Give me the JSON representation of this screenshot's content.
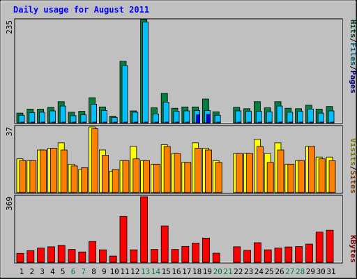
{
  "chart_data": {
    "type": "bar",
    "title": "Daily usage for August 2011",
    "categories": [
      "1",
      "2",
      "3",
      "4",
      "5",
      "6",
      "7",
      "8",
      "9",
      "10",
      "11",
      "12",
      "13",
      "14",
      "15",
      "16",
      "17",
      "18",
      "19",
      "20",
      "21",
      "22",
      "23",
      "24",
      "25",
      "26",
      "27",
      "28",
      "29",
      "30",
      "31"
    ],
    "weekend_days": [
      "6",
      "7",
      "13",
      "14",
      "20",
      "21",
      "27",
      "28"
    ],
    "panels": [
      {
        "max_label": "235",
        "ylim": [
          0,
          235
        ],
        "legend": [
          "Pages",
          "Files",
          "Hits"
        ],
        "series": [
          {
            "name": "Hits",
            "color": "#008040",
            "values": [
              22,
              31,
              31,
              35,
              48,
              24,
              26,
              57,
              36,
              15,
              140,
              27,
              235,
              34,
              67,
              33,
              36,
              36,
              54,
              25,
              0,
              35,
              32,
              48,
              34,
              48,
              33,
              32,
              40,
              31,
              37
            ]
          },
          {
            "name": "Files",
            "color": "#00C0FF",
            "values": [
              17,
              23,
              24,
              27,
              38,
              16,
              18,
              42,
              28,
              12,
              130,
              24,
              229,
              20,
              47,
              26,
              27,
              28,
              28,
              17,
              0,
              27,
              26,
              26,
              25,
              38,
              24,
              26,
              31,
              22,
              27
            ]
          },
          {
            "name": "Pages",
            "color": "#0000FF",
            "values": [
              1,
              1,
              1,
              1,
              1,
              1,
              1,
              1,
              1,
              1,
              1,
              1,
              1,
              1,
              1,
              1,
              1,
              18,
              19,
              1,
              0,
              1,
              1,
              1,
              1,
              1,
              1,
              1,
              1,
              1,
              1
            ]
          }
        ]
      },
      {
        "max_label": "37",
        "ylim": [
          0,
          37
        ],
        "legend": [
          "Sites",
          "Visits"
        ],
        "series": [
          {
            "name": "Visits",
            "color": "#FFFF00",
            "values": [
              19,
              18,
              24,
              25,
              28,
              16,
              13,
              37,
              24,
              12,
              18,
              26,
              18,
              16,
              27,
              22,
              17,
              28,
              25,
              18,
              0,
              22,
              22,
              30,
              22,
              28,
              16,
              18,
              26,
              20,
              20
            ]
          },
          {
            "name": "Sites",
            "color": "#FF8000",
            "values": [
              18,
              18,
              24,
              25,
              24,
              15,
              14,
              36,
              21,
              13,
              18,
              19,
              18,
              16,
              26,
              22,
              17,
              25,
              24,
              17,
              0,
              22,
              22,
              26,
              17,
              24,
              16,
              18,
              26,
              19,
              18
            ]
          }
        ]
      },
      {
        "max_label": "369",
        "ylim": [
          0,
          369
        ],
        "legend": [
          "KBytes"
        ],
        "series": [
          {
            "name": "KBytes",
            "color": "#FF0000",
            "values": [
              50,
              65,
              80,
              87,
              95,
              72,
              58,
              117,
              70,
              35,
              258,
              70,
              369,
              72,
              204,
              72,
              89,
              108,
              136,
              51,
              0,
              87,
              67,
              110,
              70,
              80,
              86,
              88,
              102,
              170,
              180
            ]
          }
        ]
      }
    ]
  }
}
